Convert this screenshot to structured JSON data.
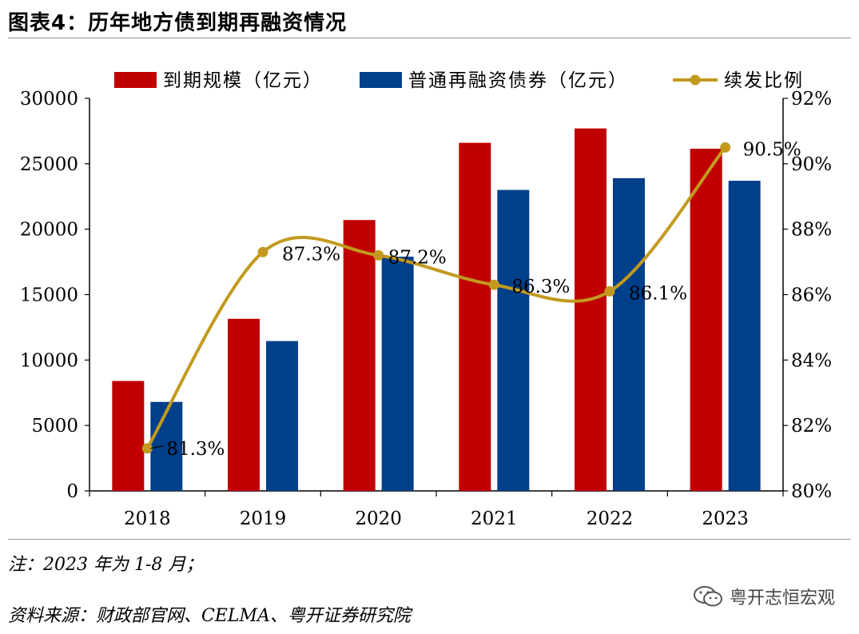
{
  "header": {
    "title": "图表4：历年地方债到期再融资情况"
  },
  "footer": {
    "note": "注：2023 年为 1-8 月；",
    "source": "资料来源：财政部官网、CELMA、粤开证券研究院",
    "watermark": "粤开志恒宏观",
    "watermark_icon": "wechat-icon"
  },
  "colors": {
    "maturity": "#C00000",
    "refinance": "#003F8A",
    "ratio": "#C29A1E"
  },
  "chart_data": {
    "type": "bar",
    "categories": [
      "2018",
      "2019",
      "2020",
      "2021",
      "2022",
      "2023"
    ],
    "series": [
      {
        "name": "到期规模（亿元）",
        "type": "bar",
        "axis": "left",
        "values": [
          8400,
          13150,
          20700,
          26600,
          27700,
          26150
        ]
      },
      {
        "name": "普通再融资债券（亿元）",
        "type": "bar",
        "axis": "left",
        "values": [
          6800,
          11450,
          17900,
          23000,
          23900,
          23700
        ]
      },
      {
        "name": "续发比例",
        "type": "line",
        "axis": "right",
        "values": [
          81.3,
          87.3,
          87.2,
          86.3,
          86.1,
          90.5
        ],
        "labels": [
          "81.3%",
          "87.3%",
          "87.2%",
          "86.3%",
          "86.1%",
          "90.5%"
        ]
      }
    ],
    "y_left": {
      "min": 0,
      "max": 30000,
      "ticks": [
        "0",
        "5000",
        "10000",
        "15000",
        "20000",
        "25000",
        "30000"
      ]
    },
    "y_right": {
      "min": 80,
      "max": 92,
      "ticks": [
        "80%",
        "82%",
        "84%",
        "86%",
        "88%",
        "90%",
        "92%"
      ]
    },
    "legend_position": "top"
  }
}
